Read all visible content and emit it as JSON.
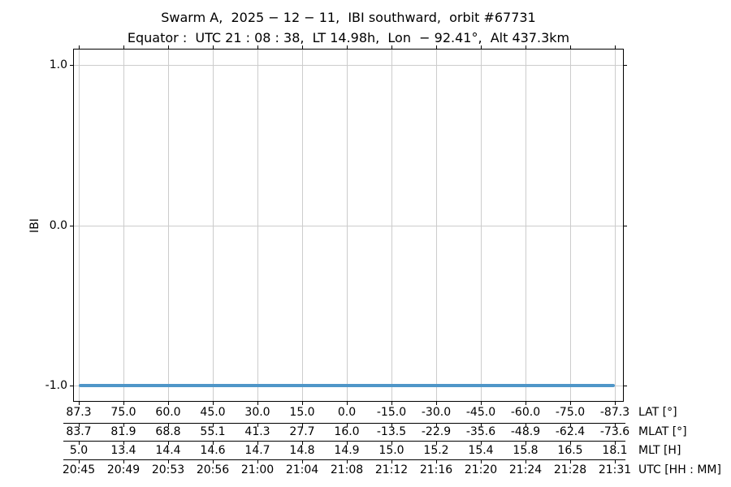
{
  "figure": {
    "title_line1": "Swarm A,  2025 − 12 − 11,  IBI southward,  orbit #67731",
    "title_line2": "Equator :  UTC 21 : 08 : 38,  LT 14.98h,  Lon  − 92.41°,  Alt 437.3km"
  },
  "chart_data": {
    "type": "line",
    "title": "Swarm A, 2025-12-11, IBI southward, orbit #67731",
    "subtitle": "Equator: UTC 21:08:38, LT 14.98h, Lon -92.41°, Alt 437.3km",
    "ylabel": "IBI",
    "ylim": [
      -1.1,
      1.1
    ],
    "yticks": [
      {
        "value": 1.0,
        "label": "1.0"
      },
      {
        "value": 0.0,
        "label": "0.0"
      },
      {
        "value": -1.0,
        "label": "-1.0"
      }
    ],
    "grid": true,
    "legend": "none",
    "colors": {
      "line": "#4f96c8",
      "grid": "#cccccc",
      "axis": "#000000"
    },
    "series": [
      {
        "name": "IBI",
        "y_constant": -1.0,
        "spans_full_x_range": true
      }
    ],
    "x_axes": [
      {
        "label": "LAT [°]",
        "ticks": [
          "87.3",
          "75.0",
          "60.0",
          "45.0",
          "30.0",
          "15.0",
          "0.0",
          "-15.0",
          "-30.0",
          "-45.0",
          "-60.0",
          "-75.0",
          "-87.3"
        ]
      },
      {
        "label": "MLAT [°]",
        "ticks": [
          "83.7",
          "81.9",
          "68.8",
          "55.1",
          "41.3",
          "27.7",
          "16.0",
          "-13.5",
          "-22.9",
          "-35.6",
          "-48.9",
          "-62.4",
          "-73.6"
        ]
      },
      {
        "label": "MLT [H]",
        "ticks": [
          "5.0",
          "13.4",
          "14.4",
          "14.6",
          "14.7",
          "14.8",
          "14.9",
          "15.0",
          "15.2",
          "15.4",
          "15.8",
          "16.5",
          "18.1"
        ]
      },
      {
        "label": "UTC [HH : MM]",
        "ticks": [
          "20:45",
          "20:49",
          "20:53",
          "20:56",
          "21:00",
          "21:04",
          "21:08",
          "21:12",
          "21:16",
          "21:20",
          "21:24",
          "21:28",
          "21:31"
        ]
      }
    ]
  }
}
